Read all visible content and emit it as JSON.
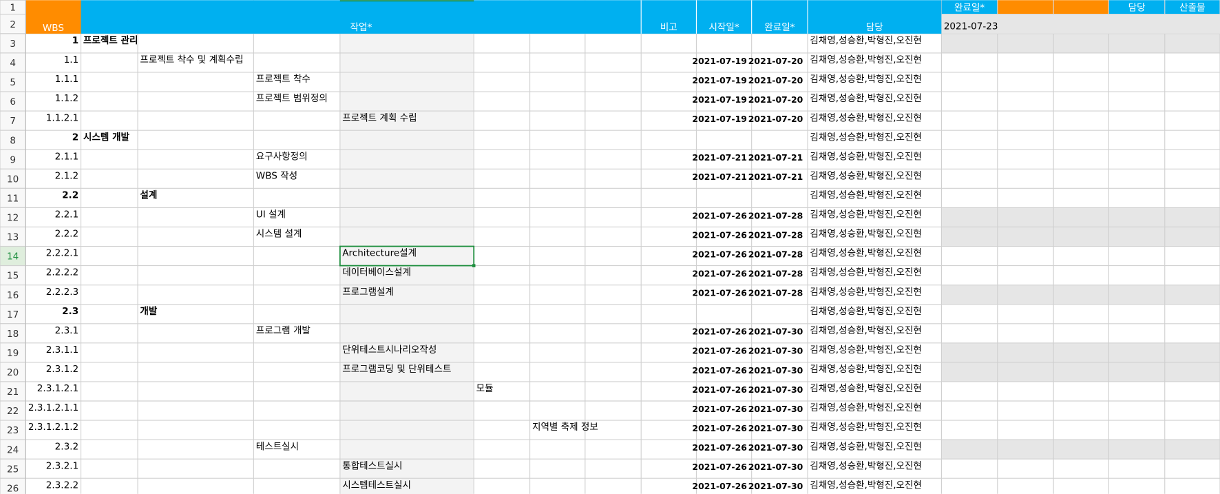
{
  "header": {
    "wbs": "WBS",
    "task": "작업*",
    "note": "비고",
    "start": "시작일*",
    "end": "완료일*",
    "owner": "담당",
    "extra_done": "완료일*",
    "extra_done_value": "2021-07-23",
    "extra_owner": "담당",
    "extra_output": "산출물"
  },
  "row_numbers": [
    1,
    2,
    3,
    4,
    5,
    6,
    7,
    8,
    9,
    10,
    11,
    12,
    13,
    14,
    15,
    16,
    17,
    18,
    19,
    20,
    21,
    22,
    23,
    24,
    25,
    26
  ],
  "selected_row": 14,
  "rows": [
    {
      "wbs": "1",
      "col": 1,
      "task": "프로젝트 관리",
      "start": null,
      "end": null,
      "owner": "김채영,성승환,박형진,오진현",
      "bold": true,
      "shaded": true
    },
    {
      "wbs": "1.1",
      "col": 2,
      "task": "프로젝트 착수 및 계획수립",
      "start": "2021-07-19",
      "end": "2021-07-20",
      "owner": "김채영,성승환,박형진,오진현",
      "bold": false,
      "shaded": false
    },
    {
      "wbs": "1.1.1",
      "col": 3,
      "task": "프로젝트 착수",
      "start": "2021-07-19",
      "end": "2021-07-20",
      "owner": "김채영,성승환,박형진,오진현",
      "bold": false,
      "shaded": false
    },
    {
      "wbs": "1.1.2",
      "col": 3,
      "task": "프로젝트 범위정의",
      "start": "2021-07-19",
      "end": "2021-07-20",
      "owner": "김채영,성승환,박형진,오진현",
      "bold": false,
      "shaded": false
    },
    {
      "wbs": "1.1.2.1",
      "col": 4,
      "task": "프로젝트 계획 수립",
      "start": "2021-07-19",
      "end": "2021-07-20",
      "owner": "김채영,성승환,박형진,오진현",
      "bold": false,
      "shaded": false
    },
    {
      "wbs": "2",
      "col": 1,
      "task": "시스템 개발",
      "start": null,
      "end": null,
      "owner": "김채영,성승환,박형진,오진현",
      "bold": true,
      "shaded": false
    },
    {
      "wbs": "2.1.1",
      "col": 3,
      "task": "요구사항정의",
      "start": "2021-07-21",
      "end": "2021-07-21",
      "owner": "김채영,성승환,박형진,오진현",
      "bold": false,
      "shaded": false
    },
    {
      "wbs": "2.1.2",
      "col": 3,
      "task": "WBS 작성",
      "start": "2021-07-21",
      "end": "2021-07-21",
      "owner": "김채영,성승환,박형진,오진현",
      "bold": false,
      "shaded": false
    },
    {
      "wbs": "2.2",
      "col": 2,
      "task": "설계",
      "start": null,
      "end": null,
      "owner": "김채영,성승환,박형진,오진현",
      "bold": true,
      "shaded": false
    },
    {
      "wbs": "2.2.1",
      "col": 3,
      "task": "UI 설계",
      "start": "2021-07-26",
      "end": "2021-07-28",
      "owner": "김채영,성승환,박형진,오진현",
      "bold": false,
      "shaded": true
    },
    {
      "wbs": "2.2.2",
      "col": 3,
      "task": "시스템 설계",
      "start": "2021-07-26",
      "end": "2021-07-28",
      "owner": "김채영,성승환,박형진,오진현",
      "bold": false,
      "shaded": true
    },
    {
      "wbs": "2.2.2.1",
      "col": 4,
      "task": "Architecture설계",
      "start": "2021-07-26",
      "end": "2021-07-28",
      "owner": "김채영,성승환,박형진,오진현",
      "bold": false,
      "shaded": false
    },
    {
      "wbs": "2.2.2.2",
      "col": 4,
      "task": "데이터베이스설계",
      "start": "2021-07-26",
      "end": "2021-07-28",
      "owner": "김채영,성승환,박형진,오진현",
      "bold": false,
      "shaded": false
    },
    {
      "wbs": "2.2.2.3",
      "col": 4,
      "task": "프로그램설계",
      "start": "2021-07-26",
      "end": "2021-07-28",
      "owner": "김채영,성승환,박형진,오진현",
      "bold": false,
      "shaded": true
    },
    {
      "wbs": "2.3",
      "col": 2,
      "task": "개발",
      "start": null,
      "end": null,
      "owner": "김채영,성승환,박형진,오진현",
      "bold": true,
      "shaded": false
    },
    {
      "wbs": "2.3.1",
      "col": 3,
      "task": "프로그램 개발",
      "start": "2021-07-26",
      "end": "2021-07-30",
      "owner": "김채영,성승환,박형진,오진현",
      "bold": false,
      "shaded": false
    },
    {
      "wbs": "2.3.1.1",
      "col": 4,
      "task": "단위테스트시나리오작성",
      "start": "2021-07-26",
      "end": "2021-07-30",
      "owner": "김채영,성승환,박형진,오진현",
      "bold": false,
      "shaded": true
    },
    {
      "wbs": "2.3.1.2",
      "col": 4,
      "task": "프로그램코딩 및 단위테스트",
      "start": "2021-07-26",
      "end": "2021-07-30",
      "owner": "김채영,성승환,박형진,오진현",
      "bold": false,
      "shaded": true
    },
    {
      "wbs": "2.3.1.2.1",
      "col": 5,
      "task": "모듈",
      "start": "2021-07-26",
      "end": "2021-07-30",
      "owner": "김채영,성승환,박형진,오진현",
      "bold": false,
      "shaded": false
    },
    {
      "wbs": "2.3.1.2.1.1",
      "col": 5,
      "task": null,
      "start": "2021-07-26",
      "end": "2021-07-30",
      "owner": "김채영,성승환,박형진,오진현",
      "bold": false,
      "shaded": false
    },
    {
      "wbs": "2.3.1.2.1.2",
      "col": 6,
      "task": "지역별 축제 정보",
      "start": "2021-07-26",
      "end": "2021-07-30",
      "owner": "김채영,성승환,박형진,오진현",
      "bold": false,
      "shaded": false
    },
    {
      "wbs": "2.3.2",
      "col": 3,
      "task": "테스트실시",
      "start": "2021-07-26",
      "end": "2021-07-30",
      "owner": "김채영,성승환,박형진,오진현",
      "bold": false,
      "shaded": true
    },
    {
      "wbs": "2.3.2.1",
      "col": 4,
      "task": "통합테스트실시",
      "start": "2021-07-26",
      "end": "2021-07-30",
      "owner": "김채영,성승환,박형진,오진현",
      "bold": false,
      "shaded": false
    },
    {
      "wbs": "2.3.2.2",
      "col": 4,
      "task": "시스템테스트실시",
      "start": "2021-07-26",
      "end": "2021-07-30",
      "owner": "김채영,성승환,박형진,오진현",
      "bold": false,
      "shaded": false
    }
  ]
}
